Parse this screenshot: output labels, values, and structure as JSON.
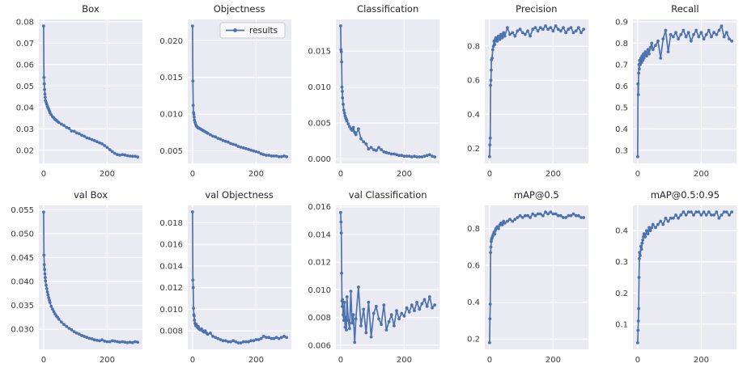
{
  "figure": {
    "description_label": "training results grid"
  },
  "colors": {
    "line": "#4c72b0",
    "marker": "#4c72b0",
    "axes_background": "#eaeaf2",
    "gridline": "#ffffff",
    "figure_background": "#ffffff",
    "text": "#262626",
    "tick_text": "#3a3a3a",
    "legend_background": "#f9f9fb",
    "legend_border": "#cccccc"
  },
  "chart_data": {
    "type": "line",
    "layout": {
      "rows": 2,
      "cols": 5,
      "grid": "on",
      "markers": "on"
    },
    "legend": {
      "label": "results",
      "position": "upper right",
      "chart_index": 1
    },
    "x_shared": {
      "ticks": [
        0,
        200
      ],
      "tick_labels": [
        "0",
        "200"
      ],
      "lim": [
        -15,
        311
      ],
      "values": [
        0,
        1,
        2,
        3,
        4,
        5,
        6,
        8,
        10,
        12,
        14,
        16,
        18,
        20,
        24,
        28,
        32,
        36,
        40,
        44,
        48,
        56,
        64,
        72,
        80,
        88,
        96,
        104,
        112,
        120,
        128,
        136,
        144,
        152,
        160,
        168,
        176,
        184,
        192,
        200,
        208,
        216,
        224,
        232,
        240,
        248,
        256,
        264,
        272,
        280,
        288,
        296
      ]
    },
    "charts": [
      {
        "title": "Box",
        "slug": "box",
        "ylim": [
          0.0139,
          0.0811
        ],
        "ytick_values": [
          0.02,
          0.03,
          0.04,
          0.05,
          0.06,
          0.07,
          0.08
        ],
        "ytick_labels": [
          "0.02",
          "0.03",
          "0.04",
          "0.05",
          "0.06",
          "0.07",
          "0.08"
        ],
        "y": [
          0.078,
          0.054,
          0.051,
          0.0483,
          0.0462,
          0.0447,
          0.0432,
          0.0424,
          0.0415,
          0.0405,
          0.0398,
          0.0391,
          0.0384,
          0.0376,
          0.0366,
          0.0357,
          0.0351,
          0.0344,
          0.034,
          0.0334,
          0.033,
          0.0322,
          0.0316,
          0.0307,
          0.0302,
          0.029,
          0.0289,
          0.0281,
          0.0277,
          0.027,
          0.0266,
          0.0258,
          0.0255,
          0.025,
          0.0245,
          0.024,
          0.0235,
          0.023,
          0.0222,
          0.0213,
          0.0203,
          0.0194,
          0.0186,
          0.018,
          0.0177,
          0.018,
          0.0178,
          0.0175,
          0.0173,
          0.0172,
          0.0172,
          0.0169
        ]
      },
      {
        "title": "Objectness",
        "slug": "objectness",
        "ylim": [
          0.0033,
          0.0229
        ],
        "ytick_values": [
          0.005,
          0.01,
          0.015,
          0.02
        ],
        "ytick_labels": [
          "0.005",
          "0.010",
          "0.015",
          "0.020"
        ],
        "y": [
          0.022,
          0.0145,
          0.0112,
          0.0102,
          0.01,
          0.0096,
          0.0092,
          0.0089,
          0.0086,
          0.0084,
          0.0083,
          0.0082,
          0.0081,
          0.0081,
          0.008,
          0.0079,
          0.0078,
          0.0077,
          0.0076,
          0.0075,
          0.0074,
          0.0072,
          0.007,
          0.0069,
          0.0067,
          0.0066,
          0.0064,
          0.0063,
          0.0062,
          0.006,
          0.0059,
          0.0058,
          0.0056,
          0.0055,
          0.0054,
          0.0053,
          0.0052,
          0.0051,
          0.005,
          0.0049,
          0.0048,
          0.0046,
          0.0045,
          0.0044,
          0.0044,
          0.0043,
          0.0043,
          0.0043,
          0.0042,
          0.0042,
          0.0043,
          0.0042
        ]
      },
      {
        "title": "Classification",
        "slug": "classification",
        "ylim": [
          -0.0006,
          0.0194
        ],
        "ytick_values": [
          0.0,
          0.005,
          0.01,
          0.015
        ],
        "ytick_labels": [
          "0.000",
          "0.005",
          "0.010",
          "0.015"
        ],
        "y": [
          0.0185,
          0.0152,
          0.0149,
          0.0135,
          0.01,
          0.0094,
          0.0085,
          0.0076,
          0.0068,
          0.0064,
          0.006,
          0.0057,
          0.0055,
          0.0053,
          0.0049,
          0.0045,
          0.0042,
          0.004,
          0.0044,
          0.0037,
          0.0034,
          0.0042,
          0.0028,
          0.0024,
          0.0021,
          0.0014,
          0.0016,
          0.0013,
          0.0012,
          0.0016,
          0.0013,
          0.001,
          0.0009,
          0.0008,
          0.0007,
          0.0007,
          0.0006,
          0.0005,
          0.0005,
          0.0004,
          0.0004,
          0.0004,
          0.0003,
          0.0004,
          0.0003,
          0.0003,
          0.0003,
          0.0004,
          0.0005,
          0.0006,
          0.0004,
          0.0003
        ]
      },
      {
        "title": "Precision",
        "slug": "precision",
        "ylim": [
          0.111,
          0.958
        ],
        "ytick_values": [
          0.2,
          0.4,
          0.6,
          0.8
        ],
        "ytick_labels": [
          "0.2",
          "0.4",
          "0.6",
          "0.8"
        ],
        "y": [
          0.15,
          0.22,
          0.26,
          0.57,
          0.6,
          0.66,
          0.72,
          0.73,
          0.78,
          0.8,
          0.83,
          0.81,
          0.84,
          0.85,
          0.83,
          0.86,
          0.84,
          0.87,
          0.85,
          0.88,
          0.86,
          0.91,
          0.87,
          0.88,
          0.86,
          0.89,
          0.9,
          0.88,
          0.87,
          0.89,
          0.86,
          0.9,
          0.91,
          0.89,
          0.91,
          0.9,
          0.92,
          0.9,
          0.91,
          0.89,
          0.92,
          0.9,
          0.89,
          0.91,
          0.88,
          0.9,
          0.91,
          0.88,
          0.89,
          0.91,
          0.88,
          0.9
        ]
      },
      {
        "title": "Recall",
        "slug": "recall",
        "ylim": [
          0.239,
          0.911
        ],
        "ytick_values": [
          0.3,
          0.4,
          0.5,
          0.6,
          0.7,
          0.8,
          0.9
        ],
        "ytick_labels": [
          "0.3",
          "0.4",
          "0.5",
          "0.6",
          "0.7",
          "0.8",
          "0.9"
        ],
        "y": [
          0.27,
          0.61,
          0.56,
          0.66,
          0.7,
          0.68,
          0.72,
          0.7,
          0.73,
          0.71,
          0.74,
          0.72,
          0.75,
          0.73,
          0.76,
          0.74,
          0.77,
          0.75,
          0.78,
          0.8,
          0.77,
          0.79,
          0.81,
          0.73,
          0.82,
          0.86,
          0.76,
          0.84,
          0.83,
          0.85,
          0.82,
          0.84,
          0.86,
          0.83,
          0.85,
          0.81,
          0.84,
          0.86,
          0.83,
          0.85,
          0.82,
          0.84,
          0.86,
          0.83,
          0.85,
          0.84,
          0.86,
          0.88,
          0.83,
          0.85,
          0.82,
          0.81
        ]
      },
      {
        "title": "val Box",
        "slug": "val-box",
        "ylim": [
          0.0258,
          0.0559
        ],
        "ytick_values": [
          0.03,
          0.035,
          0.04,
          0.045,
          0.05,
          0.055
        ],
        "ytick_labels": [
          "0.030",
          "0.035",
          "0.040",
          "0.045",
          "0.050",
          "0.055"
        ],
        "y": [
          0.0545,
          0.0455,
          0.0435,
          0.0425,
          0.0416,
          0.0408,
          0.0401,
          0.0392,
          0.0385,
          0.0378,
          0.0372,
          0.0366,
          0.0361,
          0.0356,
          0.0348,
          0.0342,
          0.0337,
          0.0332,
          0.0328,
          0.0325,
          0.0321,
          0.0315,
          0.031,
          0.0306,
          0.0302,
          0.0299,
          0.0295,
          0.0292,
          0.029,
          0.0287,
          0.0285,
          0.0283,
          0.0281,
          0.028,
          0.0278,
          0.0277,
          0.0276,
          0.0278,
          0.0275,
          0.0274,
          0.0274,
          0.0276,
          0.0275,
          0.0274,
          0.0273,
          0.0274,
          0.0273,
          0.0272,
          0.0273,
          0.0272,
          0.0274,
          0.0273
        ]
      },
      {
        "title": "val Objectness",
        "slug": "val-objectness",
        "ylim": [
          0.0063,
          0.0196
        ],
        "ytick_values": [
          0.008,
          0.01,
          0.012,
          0.014,
          0.016,
          0.018
        ],
        "ytick_labels": [
          "0.008",
          "0.010",
          "0.012",
          "0.014",
          "0.016",
          "0.018"
        ],
        "y": [
          0.019,
          0.0127,
          0.012,
          0.0101,
          0.0095,
          0.0094,
          0.009,
          0.0087,
          0.0085,
          0.0086,
          0.0084,
          0.0083,
          0.0084,
          0.0082,
          0.0081,
          0.0082,
          0.008,
          0.0079,
          0.008,
          0.0078,
          0.0077,
          0.0078,
          0.0075,
          0.0074,
          0.0073,
          0.0072,
          0.0071,
          0.0071,
          0.007,
          0.007,
          0.0071,
          0.007,
          0.0069,
          0.0069,
          0.007,
          0.007,
          0.007,
          0.0071,
          0.0071,
          0.0072,
          0.0072,
          0.0073,
          0.0075,
          0.0074,
          0.0074,
          0.0073,
          0.0073,
          0.0074,
          0.0073,
          0.0074,
          0.0075,
          0.0074
        ]
      },
      {
        "title": "val Classification",
        "slug": "val-classification",
        "ylim": [
          0.0057,
          0.0161
        ],
        "ytick_values": [
          0.006,
          0.008,
          0.01,
          0.012,
          0.014,
          0.016
        ],
        "ytick_labels": [
          "0.006",
          "0.008",
          "0.010",
          "0.012",
          "0.014",
          "0.016"
        ],
        "y": [
          0.0156,
          0.0149,
          0.0141,
          0.0112,
          0.0092,
          0.0088,
          0.0093,
          0.0082,
          0.0078,
          0.0091,
          0.0073,
          0.008,
          0.0071,
          0.0095,
          0.0078,
          0.0072,
          0.0099,
          0.0076,
          0.0082,
          0.0062,
          0.0079,
          0.0102,
          0.0074,
          0.0086,
          0.0069,
          0.0091,
          0.0066,
          0.0083,
          0.0088,
          0.0079,
          0.0075,
          0.0089,
          0.0071,
          0.0077,
          0.0082,
          0.0074,
          0.0085,
          0.0079,
          0.0083,
          0.0081,
          0.0087,
          0.0084,
          0.0089,
          0.0085,
          0.0091,
          0.0086,
          0.009,
          0.0093,
          0.0088,
          0.0095,
          0.0087,
          0.0089
        ]
      },
      {
        "title": "mAP@0.5",
        "slug": "map-0-5",
        "ylim": [
          0.144,
          0.926
        ],
        "ytick_values": [
          0.2,
          0.4,
          0.6,
          0.8
        ],
        "ytick_labels": [
          "0.2",
          "0.4",
          "0.6",
          "0.8"
        ],
        "y": [
          0.18,
          0.31,
          0.39,
          0.67,
          0.7,
          0.73,
          0.74,
          0.75,
          0.76,
          0.77,
          0.78,
          0.77,
          0.79,
          0.8,
          0.81,
          0.8,
          0.82,
          0.83,
          0.82,
          0.84,
          0.83,
          0.84,
          0.85,
          0.84,
          0.85,
          0.86,
          0.87,
          0.86,
          0.87,
          0.87,
          0.86,
          0.88,
          0.87,
          0.88,
          0.88,
          0.87,
          0.89,
          0.88,
          0.89,
          0.88,
          0.88,
          0.87,
          0.87,
          0.86,
          0.86,
          0.87,
          0.87,
          0.88,
          0.87,
          0.87,
          0.86,
          0.86
        ]
      },
      {
        "title": "mAP@0.5:0.95",
        "slug": "map-0-5-0-95",
        "ylim": [
          0.019,
          0.481
        ],
        "ytick_values": [
          0.1,
          0.2,
          0.3,
          0.4
        ],
        "ytick_labels": [
          "0.1",
          "0.2",
          "0.3",
          "0.4"
        ],
        "y": [
          0.04,
          0.08,
          0.11,
          0.15,
          0.25,
          0.31,
          0.33,
          0.32,
          0.35,
          0.34,
          0.36,
          0.37,
          0.38,
          0.39,
          0.38,
          0.4,
          0.39,
          0.41,
          0.4,
          0.41,
          0.42,
          0.41,
          0.42,
          0.43,
          0.42,
          0.44,
          0.43,
          0.44,
          0.44,
          0.45,
          0.44,
          0.45,
          0.46,
          0.45,
          0.46,
          0.46,
          0.45,
          0.46,
          0.46,
          0.45,
          0.46,
          0.45,
          0.46,
          0.45,
          0.45,
          0.46,
          0.44,
          0.45,
          0.46,
          0.46,
          0.45,
          0.46
        ]
      }
    ]
  }
}
